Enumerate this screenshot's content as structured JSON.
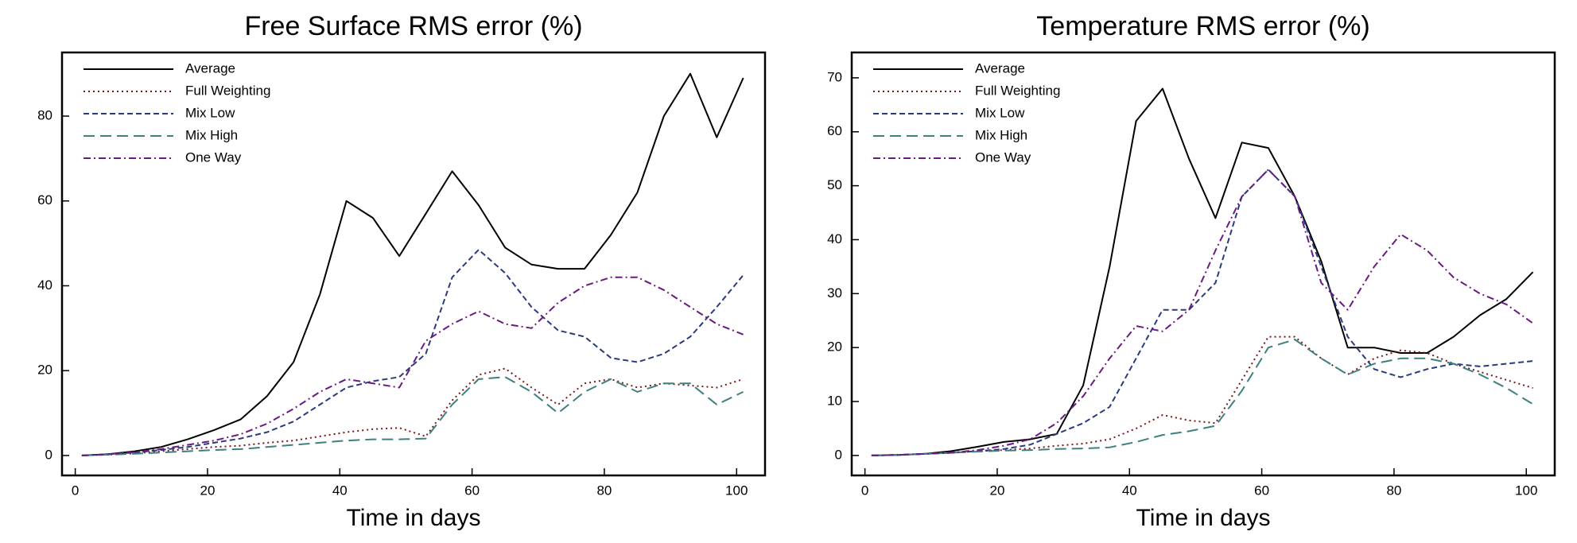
{
  "chart_data": [
    {
      "type": "line",
      "title": "Free Surface RMS error (%)",
      "x_label": "Time in days",
      "x": [
        1,
        5,
        9,
        13,
        17,
        21,
        25,
        29,
        33,
        37,
        41,
        45,
        49,
        53,
        57,
        61,
        65,
        69,
        73,
        77,
        81,
        85,
        89,
        93,
        97,
        101
      ],
      "xlim": [
        -2,
        104.3
      ],
      "xticks": [
        0,
        20,
        40,
        60,
        80,
        100
      ],
      "ylim": [
        -4.7,
        95
      ],
      "yticks": [
        0,
        20,
        40,
        60,
        80
      ],
      "legend": "upper left",
      "series": [
        {
          "name": "Average",
          "color": "#000000",
          "linestyle": "solid",
          "values": [
            0,
            0.3,
            1,
            2,
            3.8,
            6,
            8.5,
            14,
            22,
            38,
            60,
            56,
            47,
            57,
            67,
            59,
            49,
            45,
            44,
            44,
            52,
            62,
            80,
            90,
            75,
            89
          ]
        },
        {
          "name": "Full Weighting",
          "color": "#7a1515",
          "linestyle": "dotted",
          "values": [
            0,
            0.2,
            0.5,
            1,
            1.5,
            2,
            2.3,
            3,
            3.5,
            4.5,
            5.5,
            6.2,
            6.5,
            4.5,
            13,
            19,
            20.5,
            16,
            12,
            17,
            18,
            16,
            17,
            16.5,
            16,
            18
          ]
        },
        {
          "name": "Mix Low",
          "color": "#2b3a7a",
          "linestyle": "dashed",
          "values": [
            0,
            0.3,
            0.7,
            1.3,
            2,
            3,
            4,
            5.5,
            8,
            12,
            16,
            17.5,
            18.5,
            24,
            42,
            48.5,
            43,
            35,
            29.5,
            28,
            23,
            22,
            24,
            28,
            35,
            42.5
          ]
        },
        {
          "name": "Mix High",
          "color": "#3f7f80",
          "linestyle": "longdash",
          "values": [
            0,
            0.2,
            0.4,
            0.7,
            1,
            1.3,
            1.5,
            2,
            2.5,
            3,
            3.5,
            3.8,
            3.8,
            4,
            12,
            18,
            18.5,
            15,
            10,
            15,
            18,
            15,
            17,
            17,
            12,
            15
          ]
        },
        {
          "name": "One Way",
          "color": "#6a1a80",
          "linestyle": "dashdot",
          "values": [
            0,
            0.3,
            0.8,
            1.5,
            2.5,
            3.5,
            5,
            7.5,
            11,
            15,
            18,
            17,
            16,
            27,
            31,
            34,
            31,
            30,
            36,
            40,
            42,
            42,
            39,
            35,
            31,
            28.5
          ]
        }
      ]
    },
    {
      "type": "line",
      "title": "Temperature RMS error (%)",
      "x_label": "Time in days",
      "x": [
        1,
        5,
        9,
        13,
        17,
        21,
        25,
        29,
        33,
        37,
        41,
        45,
        49,
        53,
        57,
        61,
        65,
        69,
        73,
        77,
        81,
        85,
        89,
        93,
        97,
        101
      ],
      "xlim": [
        -2,
        104.3
      ],
      "xticks": [
        0,
        20,
        40,
        60,
        80,
        100
      ],
      "ylim": [
        -3.7,
        74.7
      ],
      "yticks": [
        0,
        10,
        20,
        30,
        40,
        50,
        60,
        70
      ],
      "legend": "upper left",
      "series": [
        {
          "name": "Average",
          "color": "#000000",
          "linestyle": "solid",
          "values": [
            0,
            0.1,
            0.3,
            0.8,
            1.6,
            2.5,
            3,
            4,
            13,
            35,
            62,
            68,
            55,
            44,
            58,
            57,
            48,
            36,
            20,
            20,
            19,
            19,
            22,
            26,
            29,
            34
          ]
        },
        {
          "name": "Full Weighting",
          "color": "#7a1515",
          "linestyle": "dotted",
          "values": [
            0,
            0.1,
            0.3,
            0.5,
            0.8,
            1,
            1.3,
            1.8,
            2.2,
            3,
            5,
            7.5,
            6.5,
            6,
            14,
            22,
            22,
            18,
            15,
            18,
            19.5,
            19,
            17,
            15.5,
            14,
            12.5
          ]
        },
        {
          "name": "Mix Low",
          "color": "#2b3a7a",
          "linestyle": "dashed",
          "values": [
            0,
            0.1,
            0.3,
            0.5,
            0.8,
            1.2,
            2,
            4,
            6,
            9,
            18,
            27,
            27,
            32,
            48,
            53,
            48,
            35,
            22,
            16,
            14.5,
            16,
            17,
            16.5,
            17,
            17.5
          ]
        },
        {
          "name": "Mix High",
          "color": "#3f7f80",
          "linestyle": "longdash",
          "values": [
            0,
            0.1,
            0.3,
            0.5,
            0.7,
            0.9,
            1,
            1.2,
            1.3,
            1.5,
            2.5,
            3.8,
            4.5,
            5.5,
            12,
            20,
            21.5,
            18,
            15,
            17,
            18,
            18,
            17,
            15,
            12.5,
            9.5
          ]
        },
        {
          "name": "One Way",
          "color": "#6a1a80",
          "linestyle": "dashdot",
          "values": [
            0,
            0.1,
            0.3,
            0.5,
            1,
            1.8,
            3,
            6,
            11,
            18,
            24,
            23,
            27,
            38,
            48,
            53,
            48,
            32,
            27,
            35,
            41,
            38,
            33,
            30,
            28,
            24.5
          ]
        }
      ]
    }
  ]
}
